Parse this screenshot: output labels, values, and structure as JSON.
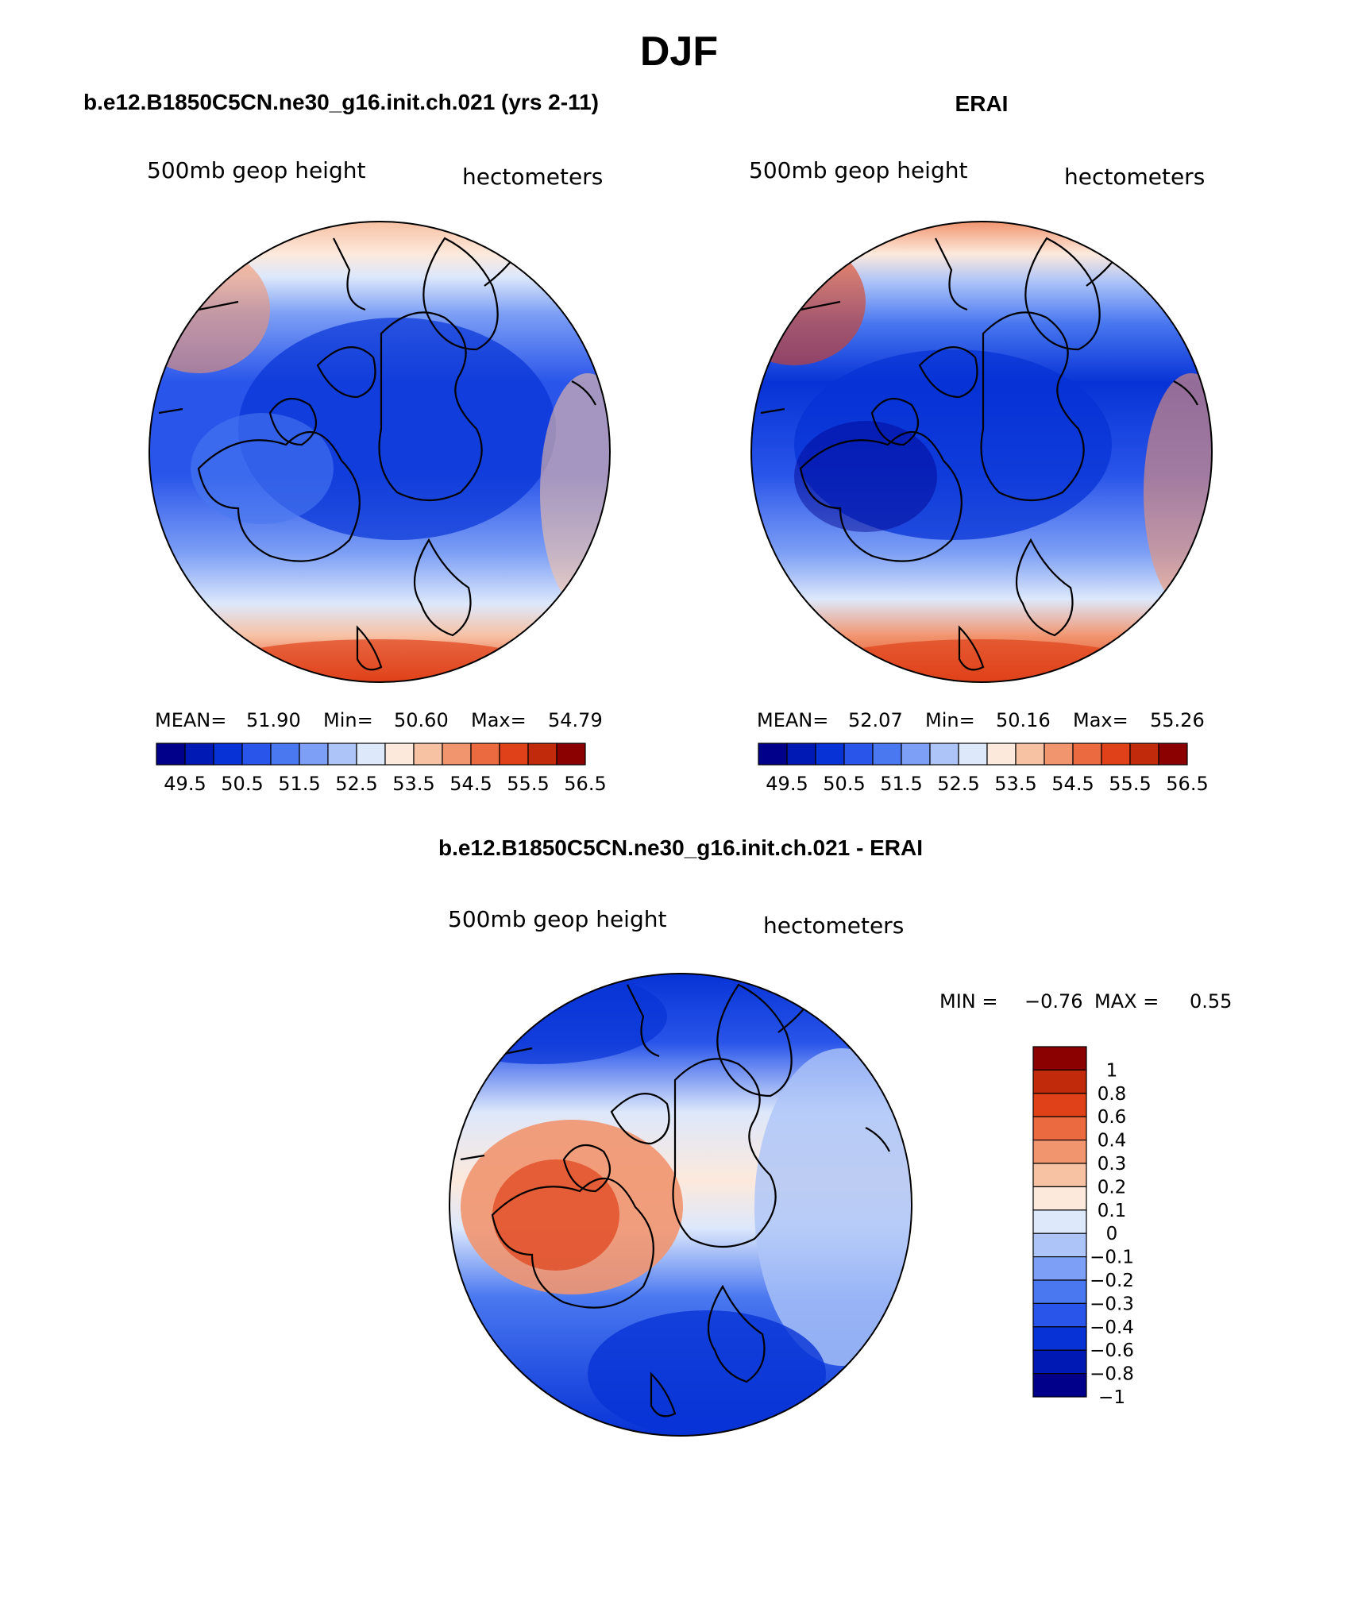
{
  "figure_title": "DJF",
  "colors": {
    "seq": [
      "#00008b",
      "#0018b4",
      "#0733d6",
      "#2955ea",
      "#4a78f0",
      "#7d9ff5",
      "#adc4f8",
      "#dde8fb",
      "#fde9dc",
      "#f7c1a3",
      "#f1956f",
      "#eb6a3f",
      "#e04119",
      "#c12b0c",
      "#8b0000"
    ],
    "diff": [
      "#00008b",
      "#0018b4",
      "#0733d6",
      "#2955ea",
      "#4a78f0",
      "#7d9ff5",
      "#adc4f8",
      "#dde8fb",
      "#fde9dc",
      "#f7c1a3",
      "#f1956f",
      "#eb6a3f",
      "#e04119",
      "#c12b0c",
      "#8b0000"
    ],
    "coast": "#000000"
  },
  "panels": [
    {
      "title": "b.e12.B1850C5CN.ne30_g16.init.ch.021 (yrs 2-11)",
      "variable": "500mb geop height",
      "units": "hectometers",
      "stats": {
        "mean_label": "MEAN=",
        "mean": "51.90",
        "min_label": "Min=",
        "min": "50.60",
        "max_label": "Max=",
        "max": "54.79"
      }
    },
    {
      "title": "ERAI",
      "variable": "500mb geop height",
      "units": "hectometers",
      "stats": {
        "mean_label": "MEAN=",
        "mean": "52.07",
        "min_label": "Min=",
        "min": "50.16",
        "max_label": "Max=",
        "max": "55.26"
      }
    },
    {
      "title": "b.e12.B1850C5CN.ne30_g16.init.ch.021 - ERAI",
      "variable": "500mb geop height",
      "units": "hectometers",
      "stats": {
        "min_label": "MIN =",
        "min": "−0.76",
        "max_label": "MAX =",
        "max": "0.55"
      }
    }
  ],
  "colorbar_ticks": [
    "49.5",
    "50.5",
    "51.5",
    "52.5",
    "53.5",
    "54.5",
    "55.5",
    "56.5"
  ],
  "diff_levels": [
    "1",
    "0.8",
    "0.6",
    "0.4",
    "0.3",
    "0.2",
    "0.1",
    "0",
    "−0.1",
    "−0.2",
    "−0.3",
    "−0.4",
    "−0.6",
    "−0.8",
    "−1"
  ]
}
